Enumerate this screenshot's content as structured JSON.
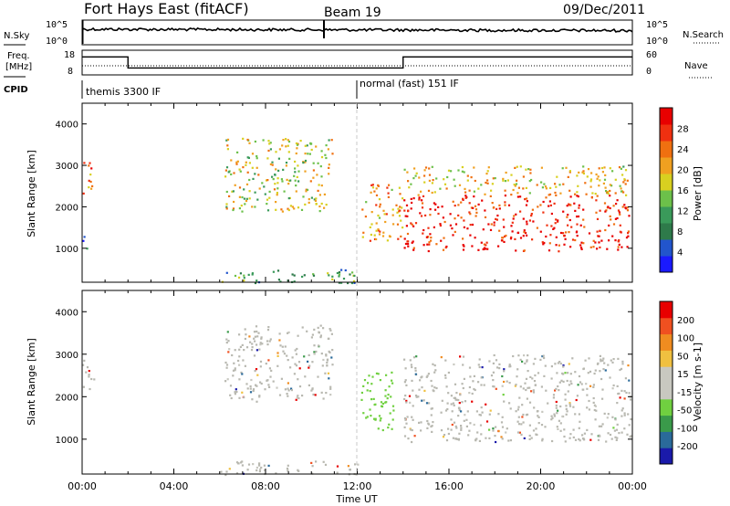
{
  "header": {
    "title": "Fort Hays East (fitACF)",
    "beam": "Beam 19",
    "date": "09/Dec/2011"
  },
  "strip_labels": {
    "nsky": "N.Sky",
    "nsearch": "N.Search",
    "freq_line1": "Freq.",
    "freq_line2": "[MHz]",
    "nave": "Nave",
    "cpid": "CPID",
    "noise_tick_top": "10^5",
    "noise_tick_bottom": "10^0",
    "freq_tick_top": "18",
    "freq_tick_bottom": "8",
    "nave_tick_top": "60",
    "nave_tick_bottom": "0"
  },
  "cpid_segments": [
    {
      "name": "themis 3300 IF",
      "start_hour": 0
    },
    {
      "name": "normal (fast) 151 IF",
      "start_hour": 12
    }
  ],
  "colors": {
    "power_scale": [
      "#1a1aff",
      "#2255cc",
      "#2e7a4a",
      "#3a9a5a",
      "#6cc04a",
      "#d8d020",
      "#f0a020",
      "#f07010",
      "#f03010",
      "#e80000"
    ],
    "velocity_scale": [
      "#e80000",
      "#f05020",
      "#f08c20",
      "#f0c040",
      "#c8c8c0",
      "#c8c8c0",
      "#70d040",
      "#3a9a4a",
      "#2a6a9a",
      "#1a1aaa"
    ],
    "ground_scatter": "#b8b8b0"
  },
  "chart_data": [
    {
      "type": "heatmap",
      "panel": "power",
      "ylabel": "Slant Range [km]",
      "xlabel": "Time UT",
      "x_ticks": [
        "00:00",
        "04:00",
        "08:00",
        "12:00",
        "16:00",
        "20:00",
        "00:00"
      ],
      "y_ticks": [
        "1000",
        "2000",
        "3000",
        "4000"
      ],
      "xlim_hours": [
        0,
        24
      ],
      "ylim_km": [
        180,
        4500
      ],
      "colorbar_label": "Power [dB]",
      "colorbar_ticks": [
        "4",
        "8",
        "12",
        "16",
        "20",
        "24",
        "28"
      ],
      "scatter_regions": [
        {
          "t0": 0.0,
          "t1": 0.5,
          "r0": 2200,
          "r1": 3100,
          "level": 0.75
        },
        {
          "t0": 0.0,
          "t1": 0.4,
          "r0": 1000,
          "r1": 1300,
          "level": 0.2
        },
        {
          "t0": 6.2,
          "t1": 10.9,
          "r0": 1900,
          "r1": 3700,
          "level": 0.55
        },
        {
          "t0": 12.1,
          "t1": 14.0,
          "r0": 1200,
          "r1": 2600,
          "level": 0.7
        },
        {
          "t0": 14.0,
          "t1": 23.9,
          "r0": 950,
          "r1": 2300,
          "level": 0.95
        },
        {
          "t0": 14.0,
          "t1": 23.9,
          "r0": 2300,
          "r1": 3000,
          "level": 0.6
        },
        {
          "t0": 6.0,
          "t1": 12.0,
          "r0": 180,
          "r1": 500,
          "level": 0.3
        }
      ]
    },
    {
      "type": "heatmap",
      "panel": "velocity",
      "ylabel": "Slant Range [km]",
      "xlabel": "Time UT",
      "x_ticks": [
        "00:00",
        "04:00",
        "08:00",
        "12:00",
        "16:00",
        "20:00",
        "00:00"
      ],
      "y_ticks": [
        "1000",
        "2000",
        "3000",
        "4000"
      ],
      "xlim_hours": [
        0,
        24
      ],
      "ylim_km": [
        180,
        4500
      ],
      "colorbar_label": "Velocity [m s-1]",
      "colorbar_ticks": [
        "200",
        "100",
        "50",
        "15",
        "-15",
        "-50",
        "-100",
        "-200"
      ],
      "scatter_regions": [
        {
          "t0": 0.0,
          "t1": 0.5,
          "r0": 2200,
          "r1": 3100,
          "level": 0.5
        },
        {
          "t0": 6.2,
          "t1": 10.9,
          "r0": 1900,
          "r1": 3700,
          "level": 0.5
        },
        {
          "t0": 12.1,
          "t1": 13.6,
          "r0": 1200,
          "r1": 2600,
          "level": 0.7
        },
        {
          "t0": 14.0,
          "t1": 23.9,
          "r0": 950,
          "r1": 3000,
          "level": 0.5
        },
        {
          "t0": 6.0,
          "t1": 12.0,
          "r0": 180,
          "r1": 500,
          "level": 0.45
        }
      ]
    }
  ]
}
